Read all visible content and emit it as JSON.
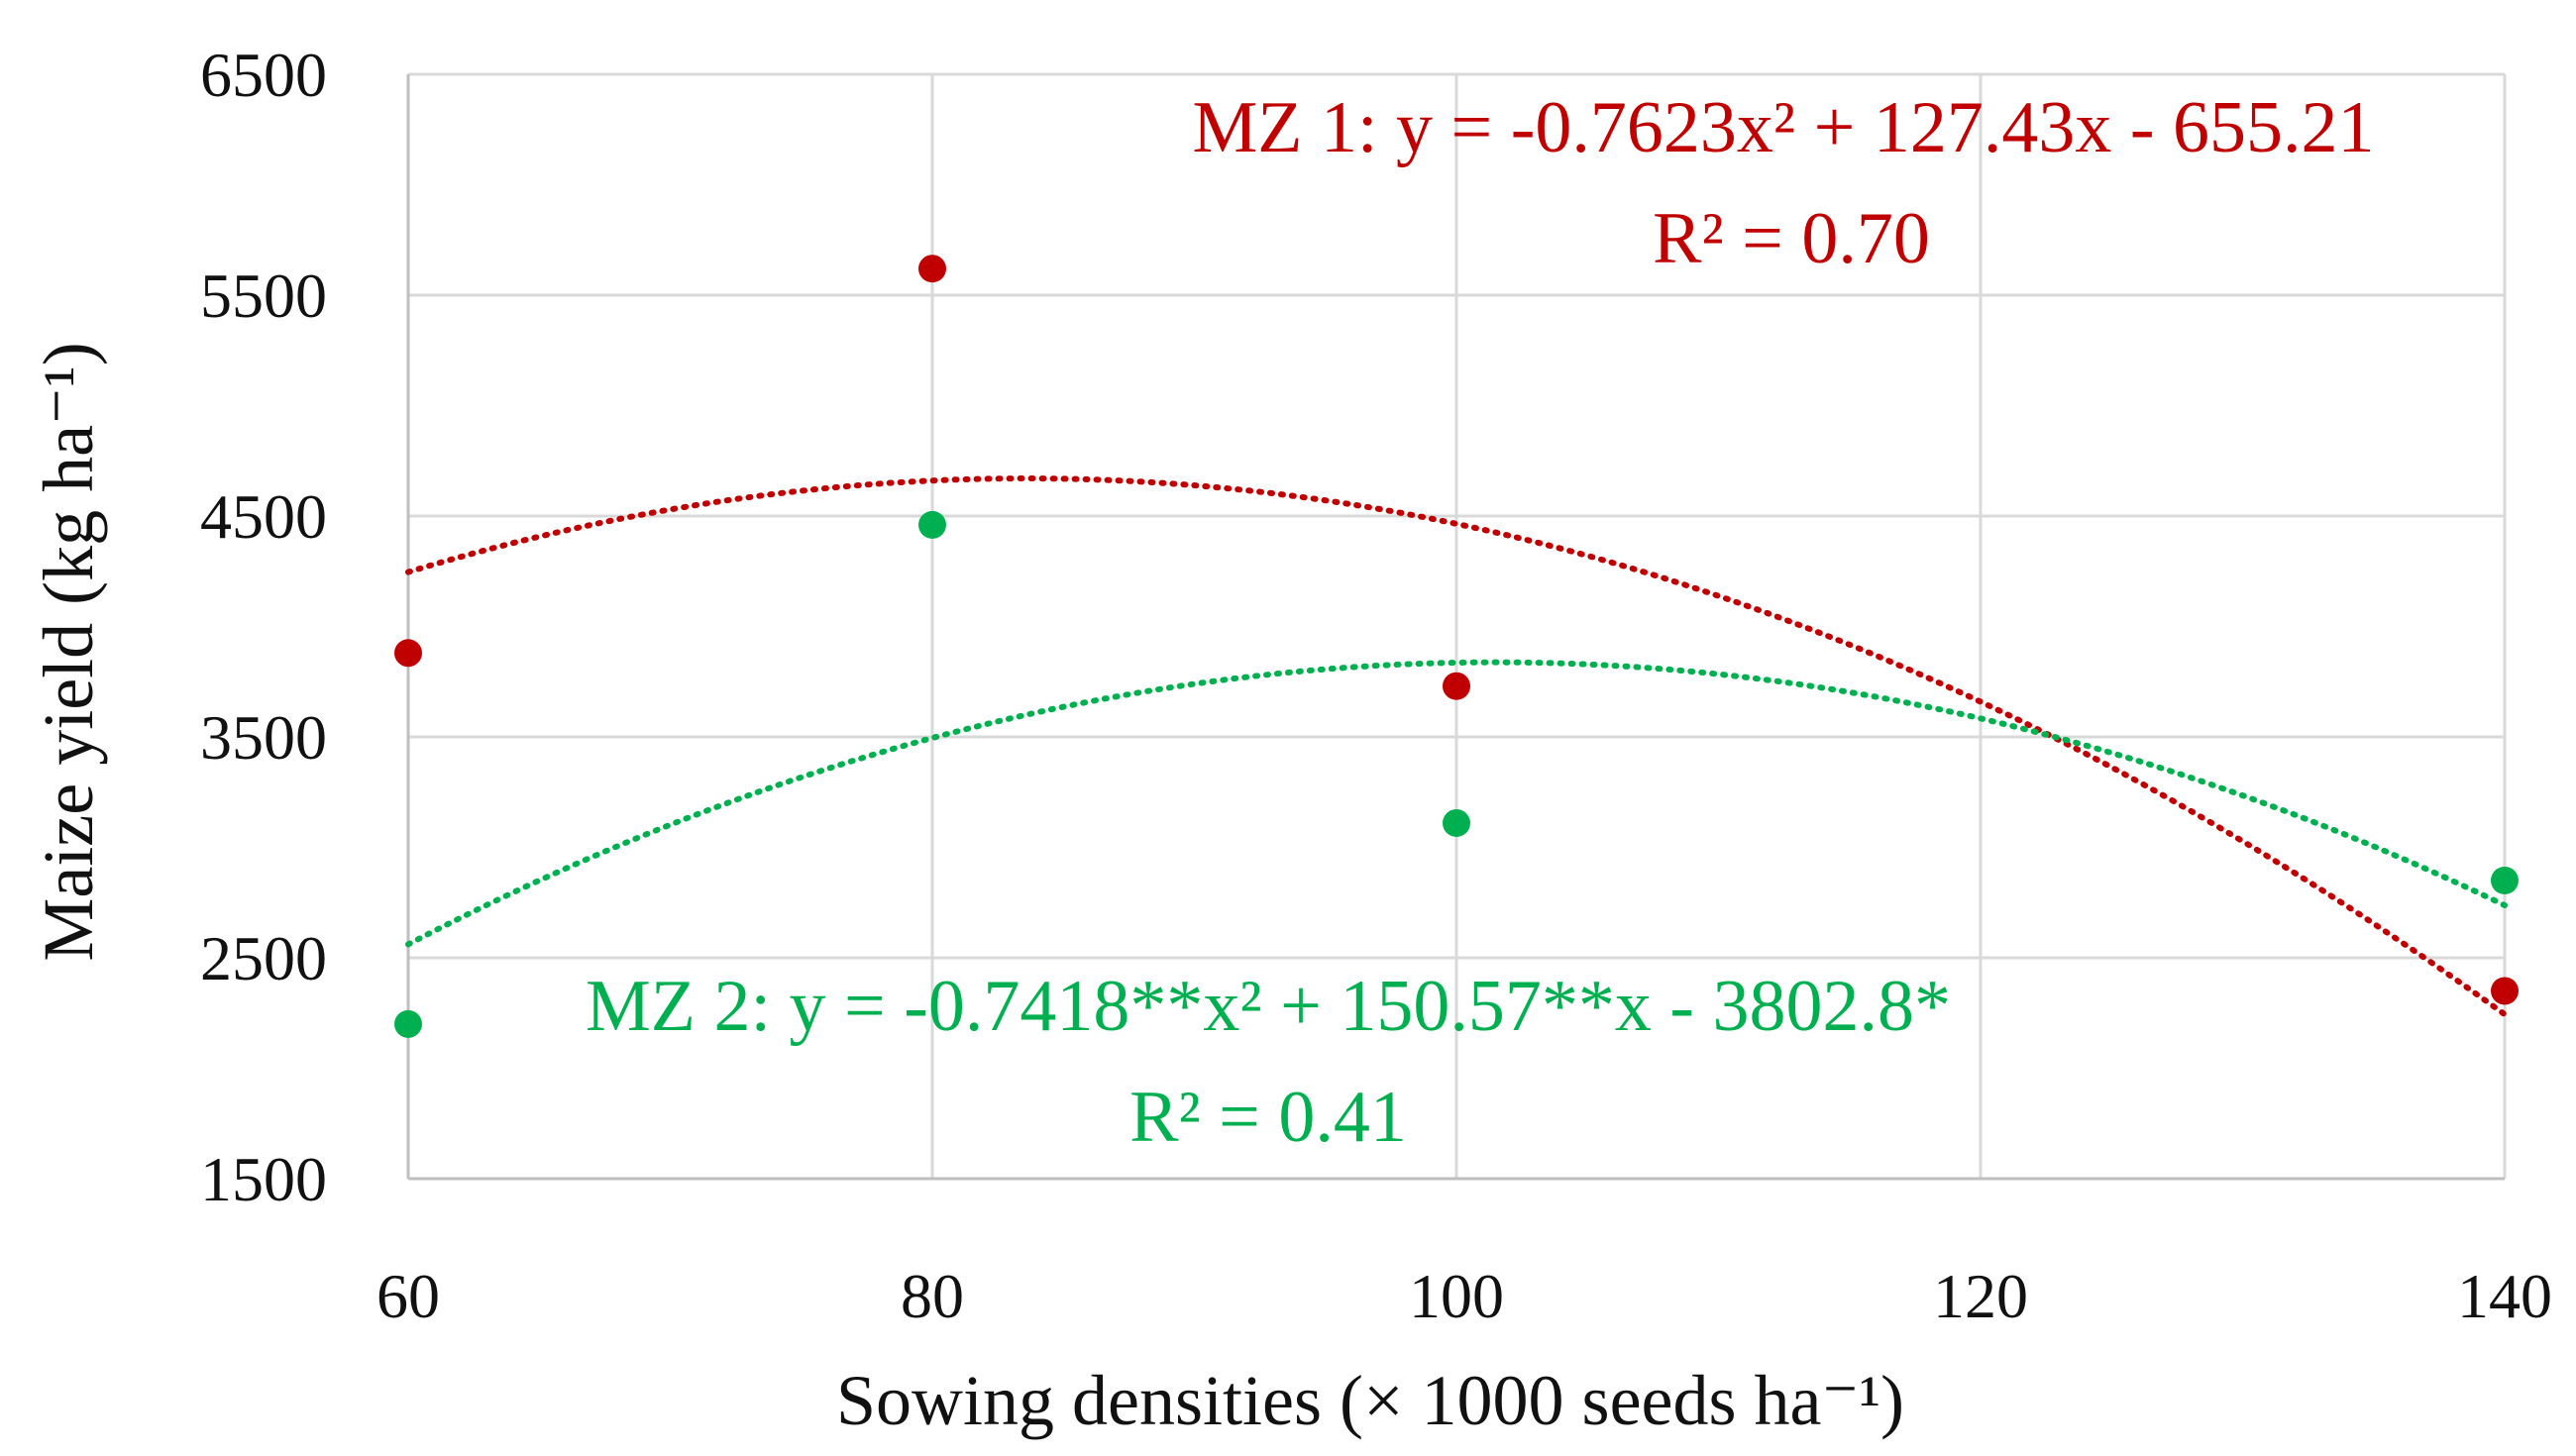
{
  "chart_data": {
    "type": "scatter",
    "title": "",
    "xlabel": "Sowing densities (× 1000 seeds ha⁻¹)",
    "ylabel": "Maize yield (kg ha⁻¹)",
    "xlim": [
      60,
      140
    ],
    "ylim": [
      1500,
      6500
    ],
    "x_ticks": [
      60,
      80,
      100,
      120,
      140
    ],
    "y_ticks": [
      1500,
      2500,
      3500,
      4500,
      5500,
      6500
    ],
    "x_tick_labels": [
      "60",
      "80",
      "100",
      "120",
      "140"
    ],
    "y_tick_labels": [
      "1500",
      "2500",
      "3500",
      "4500",
      "5500",
      "6500"
    ],
    "grid": true,
    "series": [
      {
        "name": "MZ 1",
        "color": "#c00000",
        "points": [
          {
            "x": 60,
            "y": 3880
          },
          {
            "x": 80,
            "y": 5620
          },
          {
            "x": 100,
            "y": 3730
          },
          {
            "x": 140,
            "y": 2350
          }
        ],
        "trendline": {
          "type": "poly2",
          "a": -0.7623,
          "b": 127.43,
          "c": -655.21,
          "x_range": [
            60,
            140
          ],
          "style": "dotted"
        },
        "equation": "MZ 1: y = -0.7623x² + 127.43x - 655.21",
        "r2": "R² = 0.70"
      },
      {
        "name": "MZ 2",
        "color": "#00b050",
        "points": [
          {
            "x": 60,
            "y": 2200
          },
          {
            "x": 80,
            "y": 4460
          },
          {
            "x": 100,
            "y": 3110
          },
          {
            "x": 140,
            "y": 2850
          }
        ],
        "trendline": {
          "type": "poly2",
          "a": -0.7418,
          "b": 150.57,
          "c": -3802.8,
          "x_range": [
            60,
            140
          ],
          "style": "dotted"
        },
        "equation": "MZ 2: y = -0.7418**x² + 150.57**x - 3802.8*",
        "r2": "R² = 0.41"
      }
    ]
  }
}
